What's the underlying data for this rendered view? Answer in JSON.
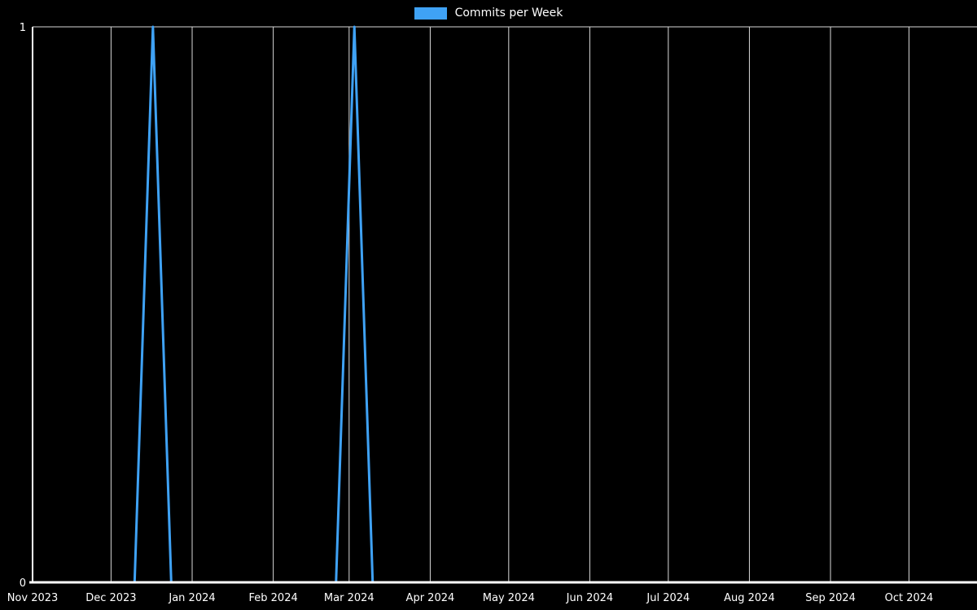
{
  "chart_data": {
    "type": "line",
    "title": "",
    "legend_label": "Commits per Week",
    "legend_position": "top-center",
    "grid": true,
    "ylim": [
      0,
      1
    ],
    "y_ticks": [
      {
        "value": 0,
        "label": "0"
      },
      {
        "value": 1,
        "label": "1"
      }
    ],
    "x_domain": [
      "2023-11-01",
      "2024-10-27"
    ],
    "x_tick_dates": [
      "2023-11-01",
      "2023-12-01",
      "2024-01-01",
      "2024-02-01",
      "2024-03-01",
      "2024-04-01",
      "2024-05-01",
      "2024-06-01",
      "2024-07-01",
      "2024-08-01",
      "2024-09-01",
      "2024-10-01"
    ],
    "x_tick_labels": [
      "Nov 2023",
      "Dec 2023",
      "Jan 2024",
      "Feb 2024",
      "Mar 2024",
      "Apr 2024",
      "May 2024",
      "Jun 2024",
      "Jul 2024",
      "Aug 2024",
      "Sep 2024",
      "Oct 2024"
    ],
    "x": [
      "2023-11-05",
      "2023-11-12",
      "2023-11-19",
      "2023-11-26",
      "2023-12-03",
      "2023-12-10",
      "2023-12-17",
      "2023-12-24",
      "2023-12-31",
      "2024-01-07",
      "2024-01-14",
      "2024-01-21",
      "2024-01-28",
      "2024-02-04",
      "2024-02-11",
      "2024-02-18",
      "2024-02-25",
      "2024-03-03",
      "2024-03-10",
      "2024-03-17",
      "2024-03-24",
      "2024-03-31",
      "2024-04-07",
      "2024-04-14",
      "2024-04-21",
      "2024-04-28",
      "2024-05-05",
      "2024-05-12",
      "2024-05-19",
      "2024-05-26",
      "2024-06-02",
      "2024-06-09",
      "2024-06-16",
      "2024-06-23",
      "2024-06-30",
      "2024-07-07",
      "2024-07-14",
      "2024-07-21",
      "2024-07-28",
      "2024-08-04",
      "2024-08-11",
      "2024-08-18",
      "2024-08-25",
      "2024-09-01",
      "2024-09-08",
      "2024-09-15",
      "2024-09-22",
      "2024-09-29",
      "2024-10-06",
      "2024-10-13",
      "2024-10-20",
      "2024-10-27"
    ],
    "values": [
      0,
      0,
      0,
      0,
      0,
      0,
      1,
      0,
      0,
      0,
      0,
      0,
      0,
      0,
      0,
      0,
      0,
      1,
      0,
      0,
      0,
      0,
      0,
      0,
      0,
      0,
      0,
      0,
      0,
      0,
      0,
      0,
      0,
      0,
      0,
      0,
      0,
      0,
      0,
      0,
      0,
      0,
      0,
      0,
      0,
      0,
      0,
      0,
      0,
      0,
      0,
      0
    ],
    "colors": {
      "line": "#3fa2f5",
      "grid": "#d9d9d9",
      "axis": "#ffffff",
      "text": "#ffffff",
      "background": "#000000"
    }
  }
}
